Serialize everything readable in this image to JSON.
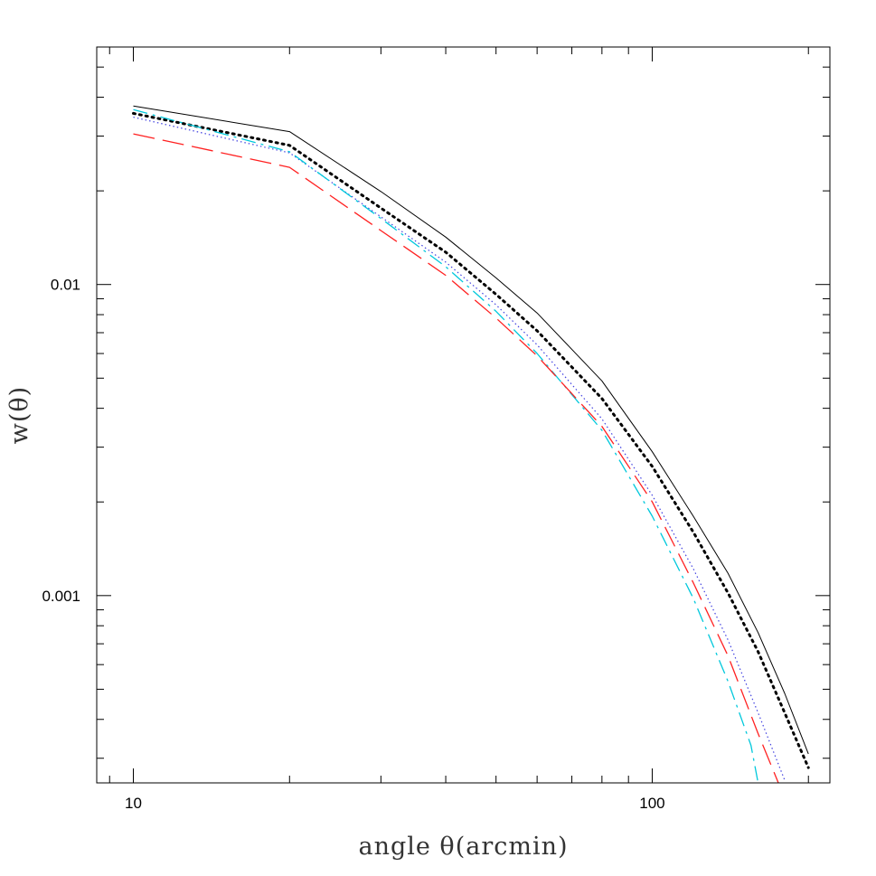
{
  "chart_data": {
    "type": "line",
    "xlabel": "angle θ(arcmin)",
    "ylabel": "w(θ)",
    "xscale": "log",
    "yscale": "log",
    "xlim": [
      8.5,
      220
    ],
    "ylim": [
      0.00025,
      0.058
    ],
    "x_tick_labels": [
      {
        "value": 10,
        "label": "10"
      },
      {
        "value": 100,
        "label": "100"
      }
    ],
    "y_tick_labels": [
      {
        "value": 0.01,
        "label": "0.01"
      },
      {
        "value": 0.001,
        "label": "0.001"
      }
    ],
    "grid": false,
    "series": [
      {
        "style": "solid",
        "color": "#000000",
        "points": [
          [
            10,
            0.0375
          ],
          [
            20,
            0.031
          ],
          [
            30,
            0.0199
          ],
          [
            40,
            0.0142
          ],
          [
            50,
            0.0105
          ],
          [
            60,
            0.0081
          ],
          [
            80,
            0.0049
          ],
          [
            100,
            0.0029
          ],
          [
            120,
            0.0018
          ],
          [
            140,
            0.00118
          ],
          [
            160,
            0.00076
          ],
          [
            180,
            0.000485
          ],
          [
            200,
            0.00031
          ]
        ]
      },
      {
        "style": "dotted-thick",
        "color": "#000000",
        "points": [
          [
            10,
            0.0355
          ],
          [
            20,
            0.028
          ],
          [
            30,
            0.0176
          ],
          [
            40,
            0.0127
          ],
          [
            50,
            0.0093
          ],
          [
            60,
            0.0071
          ],
          [
            80,
            0.0043
          ],
          [
            100,
            0.0026
          ],
          [
            120,
            0.0016
          ],
          [
            140,
            0.00102
          ],
          [
            160,
            0.00066
          ],
          [
            180,
            0.00042
          ],
          [
            200,
            0.00028
          ]
        ]
      },
      {
        "style": "dotted",
        "color": "#4040e0",
        "points": [
          [
            10,
            0.0345
          ],
          [
            20,
            0.0265
          ],
          [
            30,
            0.0165
          ],
          [
            40,
            0.0118
          ],
          [
            50,
            0.0086
          ],
          [
            60,
            0.0064
          ],
          [
            80,
            0.0037
          ],
          [
            100,
            0.0021
          ],
          [
            120,
            0.00122
          ],
          [
            140,
            0.00072
          ],
          [
            160,
            0.00042
          ],
          [
            180,
            0.000255
          ]
        ]
      },
      {
        "style": "dash-dot",
        "color": "#00c8dc",
        "points": [
          [
            10,
            0.0365
          ],
          [
            20,
            0.0267
          ],
          [
            30,
            0.0163
          ],
          [
            40,
            0.0114
          ],
          [
            50,
            0.0082
          ],
          [
            60,
            0.006
          ],
          [
            80,
            0.0034
          ],
          [
            100,
            0.0018
          ],
          [
            120,
            0.00098
          ],
          [
            140,
            0.00053
          ],
          [
            155,
            0.00033
          ],
          [
            160,
            0.00025
          ]
        ]
      },
      {
        "style": "long-dash",
        "color": "#ff2020",
        "points": [
          [
            10,
            0.0305
          ],
          [
            20,
            0.0238
          ],
          [
            30,
            0.0149
          ],
          [
            40,
            0.0107
          ],
          [
            50,
            0.0078
          ],
          [
            60,
            0.0059
          ],
          [
            80,
            0.0035
          ],
          [
            100,
            0.002
          ],
          [
            120,
            0.0011
          ],
          [
            140,
            0.00064
          ],
          [
            160,
            0.00036
          ],
          [
            175,
            0.00025
          ]
        ]
      }
    ]
  }
}
